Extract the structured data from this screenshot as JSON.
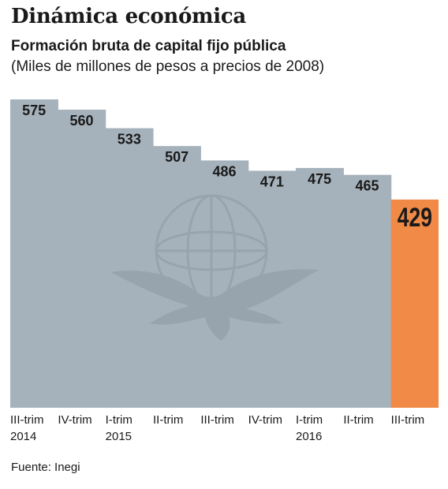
{
  "header": {
    "title": "Dinámica económica",
    "subtitle": "Formación bruta de capital fijo pública",
    "units": "(Miles de millones de pesos a precios de 2008)"
  },
  "source": "Fuente: Inegi",
  "colors": {
    "bar": "#a6b2bb",
    "highlight": "#f08a46",
    "text": "#1a1a1a"
  },
  "chart_data": {
    "type": "bar",
    "categories": [
      [
        "III-trim",
        "2014"
      ],
      [
        "IV-trim",
        ""
      ],
      [
        "I-trim",
        "2015"
      ],
      [
        "II-trim",
        ""
      ],
      [
        "III-trim",
        ""
      ],
      [
        "IV-trim",
        ""
      ],
      [
        "I-trim",
        "2016"
      ],
      [
        "II-trim",
        ""
      ],
      [
        "III-trim",
        ""
      ]
    ],
    "values": [
      575,
      560,
      533,
      507,
      486,
      471,
      475,
      465,
      429
    ],
    "highlight_index": 8,
    "grid": false,
    "legend": "none"
  }
}
